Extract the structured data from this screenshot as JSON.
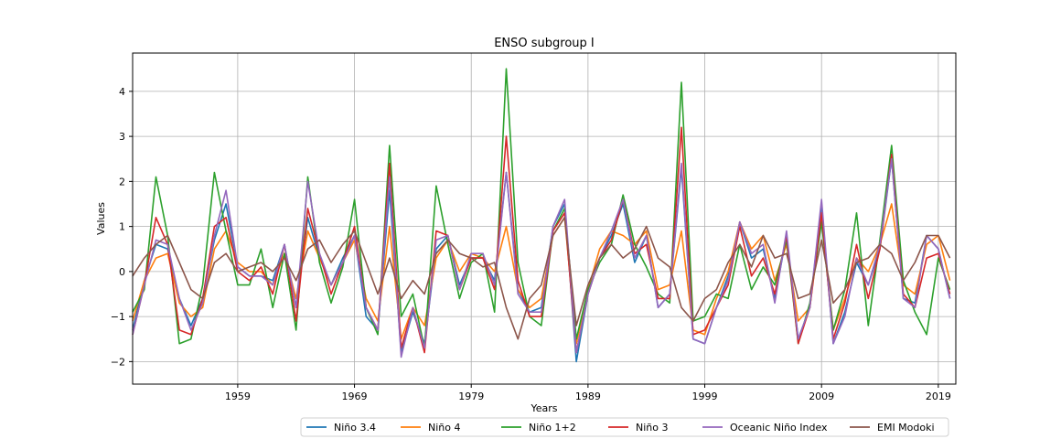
{
  "chart_data": {
    "type": "line",
    "title": "ENSO subgroup I",
    "xlabel": "Years",
    "ylabel": "Values",
    "xlim": [
      1950.0,
      2020.5
    ],
    "ylim": [
      -2.5,
      4.85
    ],
    "grid": true,
    "legend_placement": "bottom-center, below axes, single row",
    "x_ticks": [
      1959,
      1969,
      1979,
      1989,
      1999,
      2009,
      2019
    ],
    "x_tick_labels": [
      "1959",
      "1969",
      "1979",
      "1989",
      "1999",
      "2009",
      "2019"
    ],
    "y_ticks": [
      -2,
      -1,
      0,
      1,
      2,
      3,
      4
    ],
    "y_tick_labels": [
      "−2",
      "−1",
      "0",
      "1",
      "2",
      "3",
      "4"
    ],
    "x": [
      1950,
      1951,
      1952,
      1953,
      1954,
      1955,
      1956,
      1957,
      1958,
      1959,
      1960,
      1961,
      1962,
      1963,
      1964,
      1965,
      1966,
      1967,
      1968,
      1969,
      1970,
      1971,
      1972,
      1973,
      1974,
      1975,
      1976,
      1977,
      1978,
      1979,
      1980,
      1981,
      1982,
      1983,
      1984,
      1985,
      1986,
      1987,
      1988,
      1989,
      1990,
      1991,
      1992,
      1993,
      1994,
      1995,
      1996,
      1997,
      1998,
      1999,
      2000,
      2001,
      2002,
      2003,
      2004,
      2005,
      2006,
      2007,
      2008,
      2009,
      2010,
      2011,
      2012,
      2013,
      2014,
      2015,
      2016,
      2017,
      2018,
      2019,
      2020
    ],
    "series": [
      {
        "name": "Niño 3.4",
        "color": "#1f77b4",
        "values": [
          -1.3,
          -0.2,
          0.6,
          0.5,
          -0.6,
          -1.2,
          -0.6,
          0.7,
          1.5,
          0.1,
          -0.1,
          -0.1,
          -0.2,
          0.6,
          -0.8,
          1.2,
          0.3,
          -0.3,
          0.3,
          0.8,
          -1.0,
          -1.3,
          1.8,
          -1.8,
          -0.9,
          -1.6,
          0.5,
          0.8,
          -0.3,
          0.3,
          0.3,
          -0.2,
          2.2,
          -0.4,
          -0.9,
          -0.8,
          1.0,
          1.5,
          -2.0,
          -0.5,
          0.3,
          0.8,
          1.5,
          0.2,
          0.8,
          -0.8,
          -0.5,
          2.3,
          -1.5,
          -1.6,
          -0.8,
          -0.1,
          1.1,
          0.3,
          0.5,
          -0.6,
          0.8,
          -1.5,
          -0.8,
          1.5,
          -1.6,
          -0.9,
          0.2,
          -0.3,
          0.5,
          2.5,
          -0.6,
          -0.7,
          0.8,
          0.5,
          -0.6
        ]
      },
      {
        "name": "Niño 4",
        "color": "#ff7f0e",
        "values": [
          -1.1,
          -0.2,
          0.3,
          0.4,
          -0.7,
          -1.0,
          -0.8,
          0.5,
          0.9,
          0.2,
          0.0,
          0.0,
          -0.3,
          0.4,
          -0.6,
          0.9,
          0.3,
          -0.3,
          0.2,
          0.7,
          -0.6,
          -1.1,
          1.0,
          -1.5,
          -0.8,
          -1.2,
          0.3,
          0.7,
          0.0,
          0.4,
          0.3,
          0.0,
          1.0,
          -0.4,
          -0.8,
          -0.6,
          0.8,
          1.2,
          -1.6,
          -0.4,
          0.5,
          0.9,
          0.8,
          0.6,
          0.9,
          -0.4,
          -0.3,
          0.9,
          -1.3,
          -1.4,
          -0.6,
          0.0,
          1.1,
          0.5,
          0.8,
          -0.2,
          0.6,
          -1.1,
          -0.8,
          1.2,
          -1.3,
          -0.6,
          0.3,
          0.0,
          0.6,
          1.5,
          -0.3,
          -0.5,
          0.6,
          0.8,
          -0.2
        ]
      },
      {
        "name": "Niño 1+2",
        "color": "#2ca02c",
        "values": [
          -0.9,
          -0.4,
          2.1,
          0.8,
          -1.6,
          -1.5,
          -0.3,
          2.2,
          0.9,
          -0.3,
          -0.3,
          0.5,
          -0.8,
          0.4,
          -1.3,
          2.1,
          0.2,
          -0.7,
          0.1,
          1.6,
          -0.8,
          -1.4,
          2.8,
          -1.0,
          -0.5,
          -1.7,
          1.9,
          0.6,
          -0.6,
          0.2,
          0.4,
          -0.9,
          4.5,
          0.2,
          -1.0,
          -1.2,
          0.9,
          1.4,
          -1.5,
          -0.4,
          0.2,
          0.6,
          1.7,
          0.6,
          0.1,
          -0.5,
          -0.7,
          4.2,
          -1.1,
          -1.0,
          -0.5,
          -0.6,
          0.6,
          -0.4,
          0.1,
          -0.3,
          0.7,
          -1.6,
          -0.7,
          1.1,
          -1.3,
          -0.4,
          1.3,
          -1.2,
          0.7,
          2.8,
          -0.2,
          -0.9,
          -1.4,
          0.3,
          -0.4
        ]
      },
      {
        "name": "Niño 3",
        "color": "#d62728",
        "values": [
          -1.4,
          -0.3,
          1.2,
          0.6,
          -1.3,
          -1.4,
          -0.6,
          1.0,
          1.2,
          0.0,
          -0.2,
          0.1,
          -0.5,
          0.6,
          -1.1,
          1.4,
          0.4,
          -0.5,
          0.2,
          1.0,
          -0.8,
          -1.3,
          2.4,
          -1.7,
          -0.8,
          -1.8,
          0.9,
          0.8,
          -0.4,
          0.3,
          0.3,
          -0.4,
          3.0,
          -0.2,
          -1.0,
          -1.0,
          0.9,
          1.3,
          -1.8,
          -0.5,
          0.3,
          0.7,
          1.6,
          0.4,
          0.6,
          -0.6,
          -0.6,
          3.2,
          -1.4,
          -1.3,
          -0.8,
          -0.3,
          1.0,
          -0.1,
          0.3,
          -0.5,
          0.8,
          -1.6,
          -0.8,
          1.3,
          -1.5,
          -0.7,
          0.6,
          -0.6,
          0.5,
          2.6,
          -0.5,
          -0.8,
          0.3,
          0.4,
          -0.5
        ]
      },
      {
        "name": "Oceanic Niño Index",
        "color": "#9467bd",
        "values": [
          -1.4,
          -0.3,
          0.7,
          0.6,
          -0.6,
          -1.3,
          -0.7,
          0.8,
          1.8,
          0.1,
          -0.1,
          -0.1,
          -0.3,
          0.6,
          -0.8,
          2.0,
          0.4,
          -0.3,
          0.2,
          0.8,
          -0.8,
          -1.3,
          2.1,
          -1.9,
          -0.8,
          -1.7,
          0.7,
          0.8,
          -0.4,
          0.4,
          0.4,
          -0.3,
          2.2,
          -0.5,
          -0.9,
          -0.9,
          1.0,
          1.6,
          -1.8,
          -0.5,
          0.3,
          0.9,
          1.6,
          0.3,
          0.8,
          -0.8,
          -0.5,
          2.4,
          -1.5,
          -1.6,
          -0.8,
          -0.2,
          1.1,
          0.4,
          0.6,
          -0.7,
          0.9,
          -1.5,
          -0.8,
          1.6,
          -1.6,
          -1.0,
          0.3,
          -0.3,
          0.6,
          2.5,
          -0.6,
          -0.8,
          0.8,
          0.5,
          -0.6
        ]
      },
      {
        "name": "EMI Modoki",
        "color": "#8c564b",
        "values": [
          -0.1,
          0.3,
          0.6,
          0.8,
          0.2,
          -0.4,
          -0.6,
          0.2,
          0.4,
          0.0,
          0.1,
          0.2,
          0.0,
          0.3,
          -0.2,
          0.5,
          0.7,
          0.2,
          0.6,
          0.9,
          0.2,
          -0.5,
          0.3,
          -0.6,
          -0.2,
          -0.5,
          0.4,
          0.7,
          0.4,
          0.3,
          0.1,
          0.2,
          -0.8,
          -1.5,
          -0.6,
          -0.3,
          0.8,
          1.2,
          -1.2,
          -0.3,
          0.3,
          0.6,
          0.3,
          0.5,
          1.0,
          0.3,
          0.1,
          -0.8,
          -1.1,
          -0.6,
          -0.4,
          0.2,
          0.6,
          0.1,
          0.8,
          0.3,
          0.4,
          -0.6,
          -0.5,
          0.7,
          -0.7,
          -0.4,
          0.2,
          0.3,
          0.6,
          0.4,
          -0.2,
          0.2,
          0.8,
          0.8,
          0.3
        ]
      }
    ]
  }
}
